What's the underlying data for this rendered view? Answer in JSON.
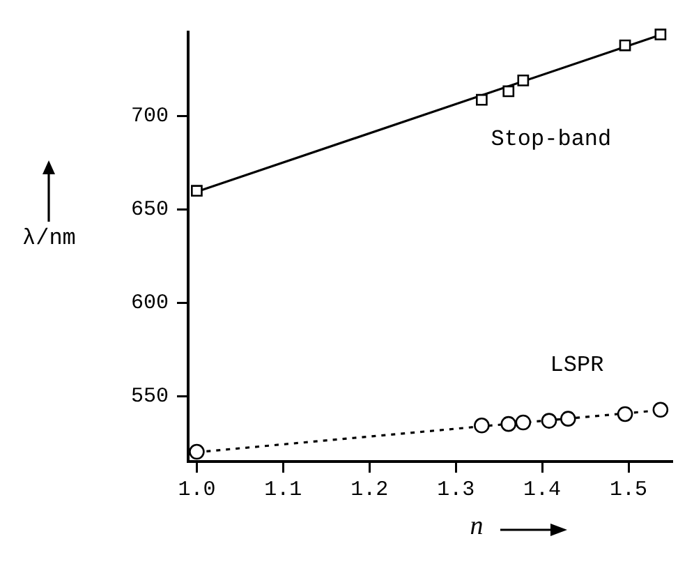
{
  "chart_data": {
    "type": "line",
    "xlabel": "n",
    "ylabel": "λ/nm",
    "xlim": [
      0.99,
      1.55
    ],
    "ylim": [
      515,
      745
    ],
    "xticks": [
      {
        "value": 1,
        "label": "1.0"
      },
      1.1,
      1.2,
      1.3,
      1.4,
      1.5
    ],
    "yticks": [
      550,
      600,
      650,
      700
    ],
    "grid": false,
    "legend": false,
    "series": [
      {
        "name": "Stop-band",
        "type": "scatter",
        "marker": "square",
        "color": "#000000",
        "x": [
          1.0,
          1.33,
          1.361,
          1.378,
          1.496,
          1.537
        ],
        "values": [
          660,
          708.7,
          713.3,
          719.1,
          737.9,
          743.7
        ]
      },
      {
        "marker": "none",
        "line_style": "solid",
        "color": "#000000",
        "x": [
          1.0,
          1.537
        ],
        "values": [
          659.5,
          743.5
        ]
      },
      {
        "name": "LSPR",
        "type": "scatter",
        "marker": "circle",
        "color": "#000000",
        "x": [
          1.0,
          1.33,
          1.361,
          1.378,
          1.408,
          1.43,
          1.496,
          1.537
        ],
        "values": [
          520.2,
          534.3,
          535.1,
          535.9,
          536.8,
          537.9,
          540.4,
          542.7
        ]
      },
      {
        "marker": "none",
        "line_style": "dotted",
        "color": "#000000",
        "x": [
          1.0,
          1.537
        ],
        "values": [
          520,
          542.5
        ]
      }
    ]
  }
}
